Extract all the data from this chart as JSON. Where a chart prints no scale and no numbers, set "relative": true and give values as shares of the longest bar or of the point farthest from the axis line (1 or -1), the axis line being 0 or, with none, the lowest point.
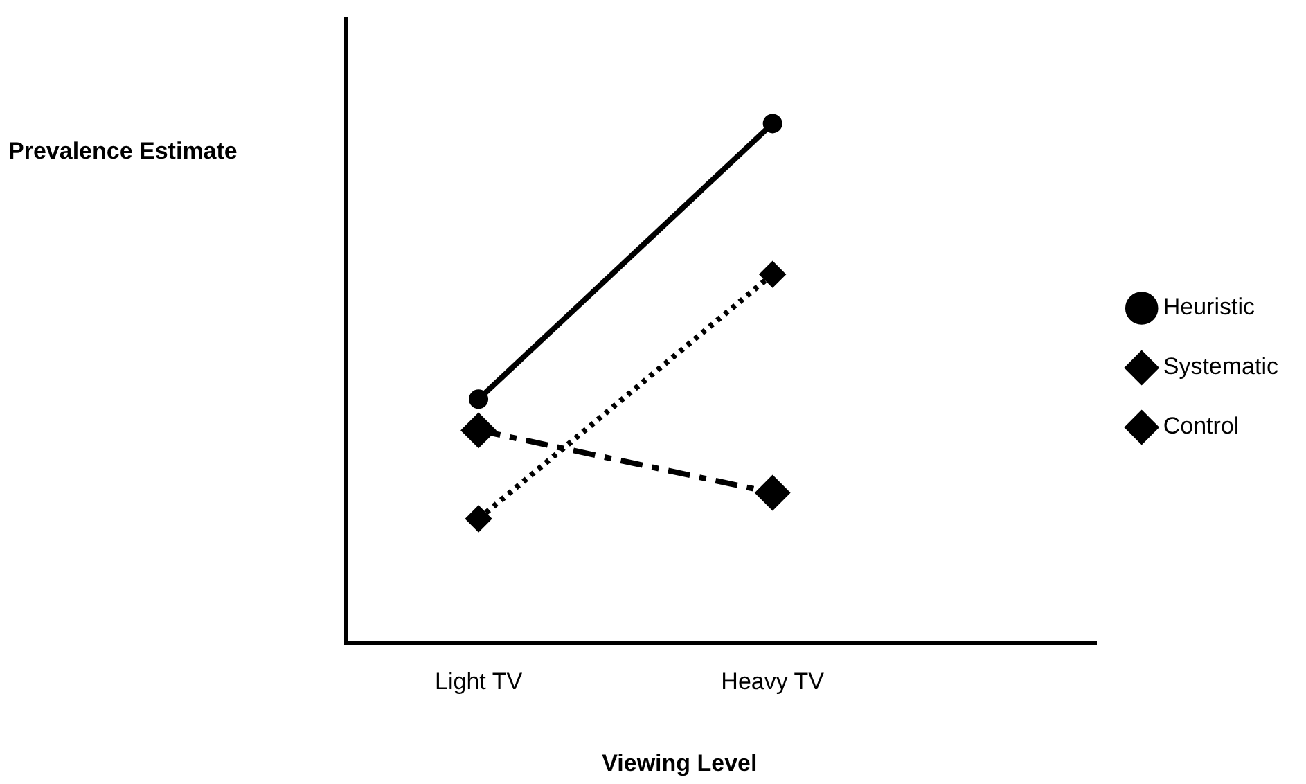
{
  "chart_data": {
    "type": "line",
    "relative": true,
    "ylabel": "Prevalence Estimate",
    "xlabel": "Viewing Level",
    "categories": [
      "Light TV",
      "Heavy TV"
    ],
    "legend": "right",
    "grid": false,
    "series": [
      {
        "name": "Heuristic",
        "color": "#000000",
        "values": [
          0.47,
          1
        ],
        "marker": "circle",
        "line_style": "solid"
      },
      {
        "name": "Systematic",
        "color": "#000000",
        "values": [
          0.41,
          0.29
        ],
        "marker": "diamond",
        "line_style": "dashed"
      },
      {
        "name": "Control",
        "color": "#000000",
        "values": [
          0.24,
          0.71
        ],
        "marker": "diamond",
        "line_style": "dotted"
      }
    ]
  }
}
